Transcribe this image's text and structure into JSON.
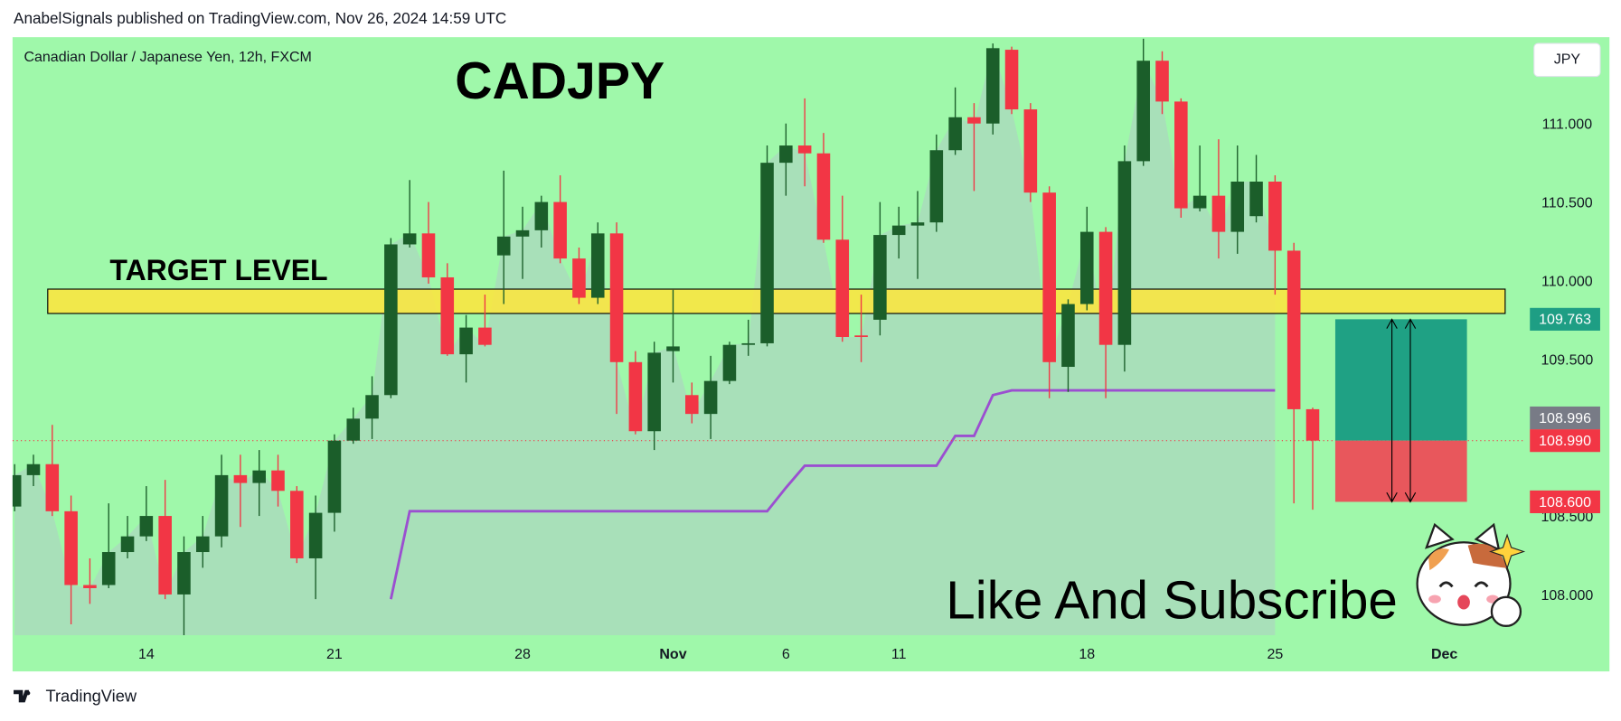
{
  "header": {
    "publisher": "AnabelSignals published on TradingView.com, Nov 26, 2024 14:59 UTC"
  },
  "footer": {
    "brand": "TradingView"
  },
  "chart_data": {
    "type": "candlestick",
    "title": "CADJPY",
    "subtitle": "Canadian Dollar / Japanese Yen, 12h, FXCM",
    "currency": "JPY",
    "annotation": "Like And Subscribe",
    "up_color": "#1b5e2a",
    "down_color": "#f23645",
    "open": [
      108.57,
      108.77,
      108.84,
      108.54,
      108.07,
      108.07,
      108.28,
      108.38,
      108.51,
      108.01,
      108.28,
      108.38,
      108.77,
      108.72,
      108.8,
      108.67,
      108.24,
      108.53,
      108.99,
      109.13,
      109.28,
      110.24,
      110.31,
      110.03,
      109.54,
      109.71,
      110.17,
      110.29,
      110.33,
      110.51,
      110.15,
      109.9,
      110.31,
      109.49,
      109.05,
      109.56,
      109.28,
      109.16,
      109.37,
      109.6,
      109.61,
      110.76,
      110.87,
      110.82,
      110.27,
      109.66,
      109.76,
      110.3,
      110.36,
      110.38,
      110.84,
      111.05,
      111.01,
      111.48,
      111.1,
      110.57,
      109.46,
      109.86,
      110.32,
      109.6,
      110.77,
      111.41,
      111.15,
      110.47,
      110.55,
      110.32,
      110.42,
      110.64,
      110.2,
      109.19
    ],
    "high": [
      108.84,
      108.9,
      109.09,
      108.64,
      108.24,
      108.59,
      108.51,
      108.7,
      108.74,
      108.38,
      108.51,
      108.9,
      108.9,
      108.93,
      108.9,
      108.7,
      108.64,
      109.03,
      109.2,
      109.4,
      110.28,
      110.65,
      110.51,
      110.12,
      109.79,
      109.92,
      110.71,
      110.48,
      110.55,
      110.68,
      110.22,
      110.38,
      110.38,
      109.56,
      109.62,
      109.95,
      109.36,
      109.53,
      109.62,
      109.76,
      110.87,
      111.01,
      111.17,
      110.95,
      110.55,
      109.92,
      110.51,
      110.48,
      110.58,
      110.94,
      111.24,
      111.14,
      111.52,
      111.5,
      111.14,
      110.61,
      109.89,
      110.48,
      110.35,
      110.87,
      111.55,
      111.47,
      111.17,
      110.87,
      110.91,
      110.87,
      110.81,
      110.68,
      110.25,
      109.2
    ],
    "low": [
      108.54,
      108.7,
      108.51,
      107.82,
      107.95,
      108.05,
      108.24,
      108.35,
      107.98,
      107.75,
      108.18,
      108.31,
      108.44,
      108.51,
      108.57,
      108.21,
      107.98,
      108.41,
      108.97,
      109.0,
      109.26,
      110.22,
      109.99,
      109.53,
      109.36,
      109.59,
      109.86,
      110.02,
      110.22,
      110.12,
      109.86,
      109.86,
      109.16,
      109.03,
      108.93,
      109.36,
      109.1,
      109.0,
      109.35,
      109.53,
      109.59,
      110.55,
      110.61,
      110.25,
      109.62,
      109.49,
      109.66,
      110.15,
      110.02,
      110.32,
      110.81,
      110.58,
      110.94,
      111.07,
      110.51,
      109.26,
      109.3,
      109.82,
      109.26,
      109.43,
      110.74,
      111.07,
      110.41,
      110.45,
      110.15,
      110.18,
      110.38,
      109.92,
      108.59,
      108.55
    ],
    "close": [
      108.77,
      108.84,
      108.54,
      108.07,
      108.05,
      108.28,
      108.38,
      108.51,
      108.01,
      108.28,
      108.38,
      108.77,
      108.72,
      108.8,
      108.67,
      108.24,
      108.53,
      108.99,
      109.13,
      109.28,
      110.24,
      110.31,
      110.03,
      109.54,
      109.71,
      109.6,
      110.29,
      110.33,
      110.51,
      110.15,
      109.9,
      110.31,
      109.49,
      109.05,
      109.55,
      109.59,
      109.16,
      109.37,
      109.6,
      109.61,
      110.76,
      110.87,
      110.82,
      110.27,
      109.65,
      109.65,
      110.3,
      110.36,
      110.38,
      110.84,
      111.05,
      111.01,
      111.49,
      111.1,
      110.57,
      109.49,
      109.86,
      110.32,
      109.6,
      110.77,
      111.41,
      111.15,
      110.47,
      110.55,
      110.32,
      110.64,
      110.64,
      110.2,
      109.19,
      108.99
    ],
    "trail": {
      "color": "#9b4fd0",
      "values": [
        null,
        null,
        null,
        null,
        null,
        null,
        null,
        null,
        null,
        null,
        null,
        null,
        null,
        null,
        null,
        null,
        null,
        null,
        null,
        null,
        107.98,
        108.54,
        108.54,
        108.54,
        108.54,
        108.54,
        108.54,
        108.54,
        108.54,
        108.54,
        108.54,
        108.54,
        108.54,
        108.54,
        108.54,
        108.54,
        108.54,
        108.54,
        108.54,
        108.54,
        108.54,
        108.69,
        108.83,
        108.83,
        108.83,
        108.83,
        108.83,
        108.83,
        108.83,
        108.83,
        109.02,
        109.02,
        109.28,
        109.31,
        109.31,
        109.31,
        109.31,
        109.31,
        109.31,
        109.31,
        109.31,
        109.31,
        109.31,
        109.31,
        109.31,
        109.31,
        109.31,
        109.31,
        null,
        null
      ]
    },
    "zone": {
      "label": "TARGET LEVEL",
      "start": 1.76,
      "end": 79.23,
      "top": 109.955,
      "bottom": 109.8,
      "color": "#ffe53b"
    },
    "position": {
      "start": 70.2,
      "end": 77.2,
      "target": 109.763,
      "entry": 108.99,
      "stop": 108.6,
      "profit_color": "#1fa184",
      "loss_color": "#e8575c"
    },
    "price_labels": [
      {
        "value": 109.763,
        "label": "109.763",
        "color": "#1e9e84"
      },
      {
        "value": 108.996,
        "label": "108.996",
        "color": "#787b86"
      },
      {
        "value": 108.99,
        "label": "108.990",
        "color": "#f23645"
      },
      {
        "value": 108.6,
        "label": "108.600",
        "color": "#f23645"
      }
    ],
    "xlim": [
      -0.11,
      80.27
    ],
    "xticks": [
      {
        "value": 7,
        "label": "14"
      },
      {
        "value": 17,
        "label": "21"
      },
      {
        "value": 27,
        "label": "28"
      },
      {
        "value": 35,
        "label": "Nov"
      },
      {
        "value": 41,
        "label": "6"
      },
      {
        "value": 47,
        "label": "11"
      },
      {
        "value": 57,
        "label": "18"
      },
      {
        "value": 67,
        "label": "25"
      },
      {
        "value": 76,
        "label": "Dec"
      }
    ],
    "ylim": [
      107.75,
      111.56
    ],
    "yticks": [
      {
        "value": 108,
        "label": "108.000"
      },
      {
        "value": 108.5,
        "label": "108.500"
      },
      {
        "value": 109.5,
        "label": "109.500"
      },
      {
        "value": 110,
        "label": "110.000"
      },
      {
        "value": 110.5,
        "label": "110.500"
      },
      {
        "value": 111,
        "label": "111.000"
      }
    ]
  }
}
